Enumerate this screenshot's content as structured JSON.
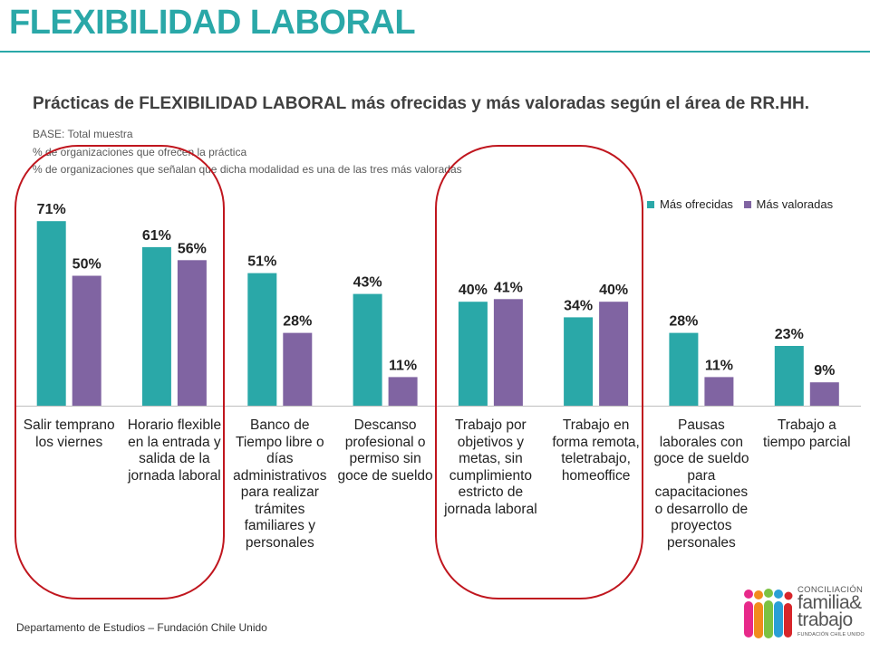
{
  "header": {
    "title": "FLEXIBILIDAD LABORAL",
    "subtitle": "Prácticas de FLEXIBILIDAD LABORAL más ofrecidas y más valoradas según el área de RR.HH."
  },
  "notes": {
    "base": "BASE:  Total muestra",
    "line1": "%  de organizaciones que ofrecen la práctica",
    "line2": "% de organizaciones que señalan que dicha modalidad es una de las tres más valoradas"
  },
  "legend": {
    "offered": "Más ofrecidas",
    "valued": "Más valoradas"
  },
  "colors": {
    "accent": "#2aa8a8",
    "offered": "#2aa8a8",
    "valued": "#8064a2",
    "highlight": "#c0161e"
  },
  "chart_data": {
    "type": "bar",
    "title": "Prácticas de FLEXIBILIDAD LABORAL más ofrecidas y más valoradas según el área de RR.HH.",
    "categories": [
      "Salir temprano los viernes",
      "Horario flexible en la entrada y salida de la jornada laboral",
      "Banco de Tiempo libre o días administrativos para realizar trámites familiares y personales",
      "Descanso profesional o permiso sin goce de sueldo",
      "Trabajo por objetivos y metas, sin cumplimiento estricto de jornada laboral",
      "Trabajo en forma remota, teletrabajo, homeoffice",
      "Pausas laborales con goce de sueldo para capacitaciones o desarrollo de proyectos personales",
      "Trabajo a tiempo parcial"
    ],
    "series": [
      {
        "name": "Más ofrecidas",
        "values": [
          71,
          61,
          51,
          43,
          40,
          34,
          28,
          23
        ]
      },
      {
        "name": "Más valoradas",
        "values": [
          50,
          56,
          28,
          11,
          41,
          40,
          11,
          9
        ]
      }
    ],
    "value_suffix": "%",
    "xlabel": "",
    "ylabel": "",
    "ylim": [
      0,
      100
    ],
    "grid": false,
    "legend_position": "top-right",
    "highlighted_categories": [
      0,
      1,
      4,
      5
    ]
  },
  "footer": {
    "text": "Departamento de Estudios – Fundación Chile Unido"
  },
  "logo": {
    "line1": "CONCILIACIÓN",
    "line2": "familia&",
    "line3": "trabajo",
    "line4": "FUNDACIÓN CHILE UNIDO"
  }
}
